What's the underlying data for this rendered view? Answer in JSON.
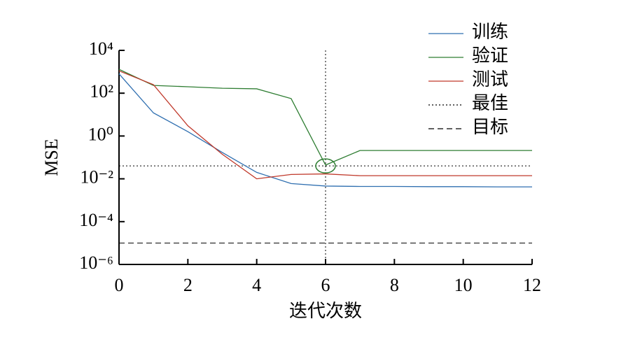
{
  "chart_data": {
    "type": "line",
    "x_label": "迭代次数",
    "y_label": "MSE",
    "log_y": true,
    "x": [
      0,
      1,
      2,
      3,
      4,
      5,
      6,
      7,
      8,
      9,
      10,
      11,
      12
    ],
    "series": [
      {
        "name": "训练",
        "color": "#2f6fb0",
        "values": [
          800,
          12,
          1.6,
          0.17,
          0.02,
          0.006,
          0.0046,
          0.0044,
          0.0044,
          0.0043,
          0.0043,
          0.0042,
          0.0042
        ]
      },
      {
        "name": "验证",
        "color": "#2e7d32",
        "values": [
          1300,
          230,
          200,
          170,
          160,
          56,
          0.044,
          0.21,
          0.21,
          0.21,
          0.21,
          0.21,
          0.21
        ]
      },
      {
        "name": "测试",
        "color": "#c0392b",
        "values": [
          1100,
          250,
          3,
          0.14,
          0.01,
          0.016,
          0.017,
          0.014,
          0.014,
          0.014,
          0.014,
          0.014,
          0.014
        ]
      }
    ],
    "best": {
      "name": "最佳",
      "x": 6,
      "y": 0.04
    },
    "goal": {
      "name": "目标",
      "value": 1e-05
    },
    "xlim": [
      0,
      12
    ],
    "xticks": [
      0,
      2,
      4,
      6,
      8,
      10,
      12
    ],
    "ylim": [
      1e-06,
      10000
    ],
    "yticks": [
      {
        "value": 1e-06,
        "label": "10⁻⁶"
      },
      {
        "value": 0.0001,
        "label": "10⁻⁴"
      },
      {
        "value": 0.01,
        "label": "10⁻²"
      },
      {
        "value": 1,
        "label": "10⁰"
      },
      {
        "value": 100,
        "label": "10²"
      },
      {
        "value": 10000,
        "label": "10⁴"
      }
    ]
  }
}
